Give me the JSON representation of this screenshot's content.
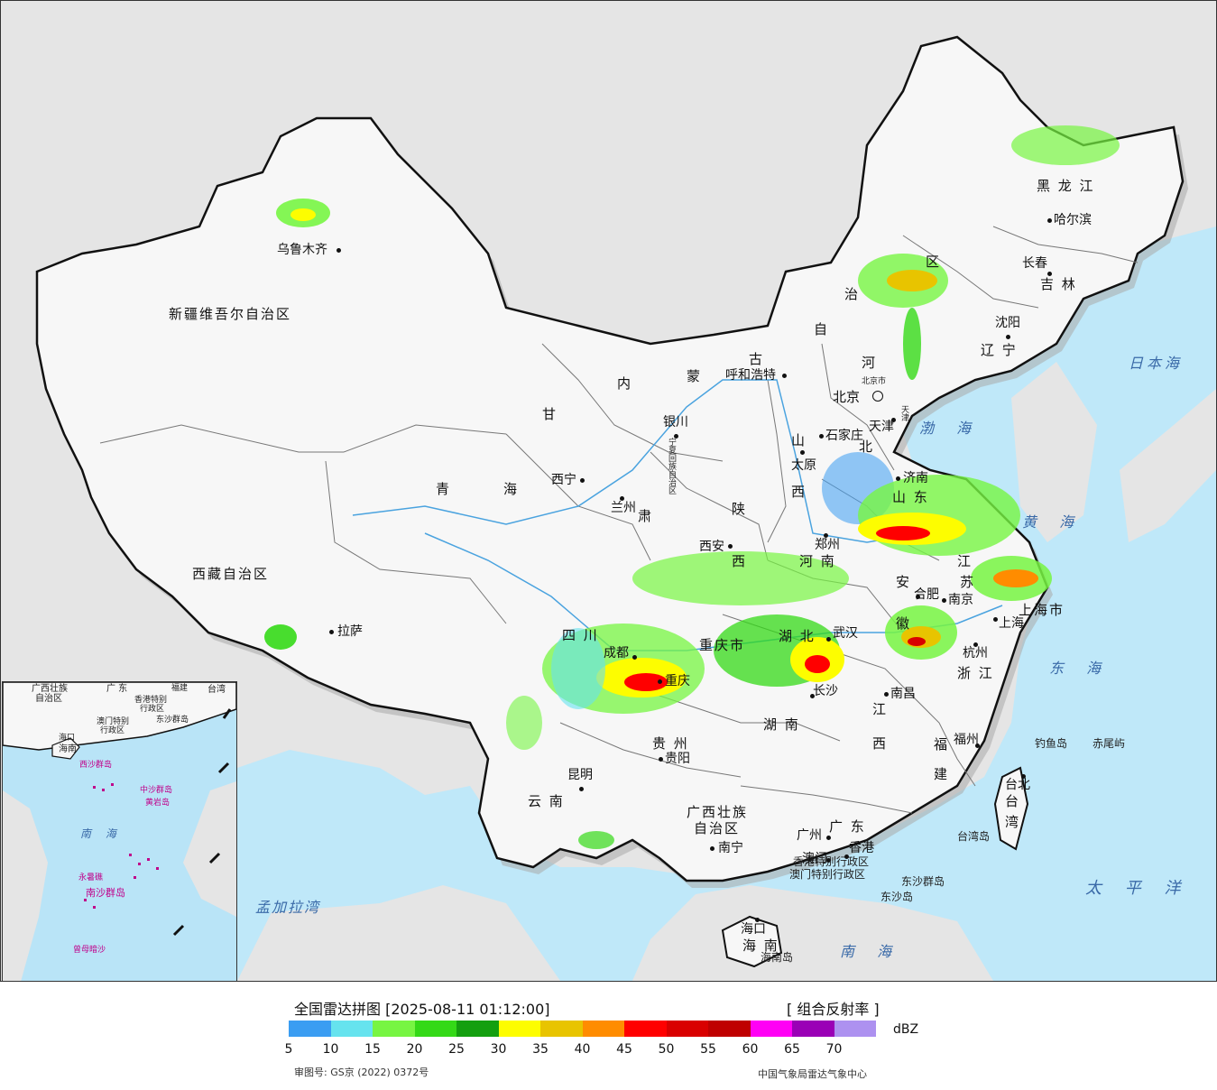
{
  "legend": {
    "title": "全国雷达拼图 [2025-08-11 01:12:00]",
    "product": "[ 组合反射率 ]",
    "unit": "dBZ",
    "ticks": [
      "5",
      "10",
      "15",
      "20",
      "25",
      "30",
      "35",
      "40",
      "45",
      "50",
      "55",
      "60",
      "65",
      "70"
    ],
    "colors": [
      "#3a9df2",
      "#66e3ee",
      "#77f542",
      "#34d917",
      "#149f0f",
      "#fdfd00",
      "#e8c400",
      "#ff8c00",
      "#ff0000",
      "#d90000",
      "#bf0000",
      "#ff00f5",
      "#9a00b6",
      "#ad91f0"
    ],
    "approval": "审图号: GS京 (2022) 0372号",
    "source": "中国气象局雷达气象中心"
  },
  "provinces": {
    "xinjiang": "新疆维吾尔自治区",
    "xizang": "西藏自治区",
    "qinghai_1": "青",
    "qinghai_2": "海",
    "gansu": "甘",
    "gansu_2": "肃",
    "neimenggu_1": "内",
    "neimenggu_2": "蒙",
    "neimenggu_3": "古",
    "neimenggu_4": "自",
    "neimenggu_5": "治",
    "neimenggu_6": "区",
    "heilongjiang": "黑 龙 江",
    "jilin": "吉 林",
    "liaoning": "辽 宁",
    "hebei_1": "河",
    "hebei_2": "北",
    "shanxi_1": "山",
    "shanxi_2": "西",
    "shaanxi_1": "陕",
    "shaanxi_2": "西",
    "shandong": "山 东",
    "henan": "河 南",
    "jiangsu_1": "江",
    "jiangsu_2": "苏",
    "anhui_1": "安",
    "anhui_2": "徽",
    "shanghai": "上海市",
    "zhejiang": "浙 江",
    "hubei": "湖 北",
    "sichuan": "四 川",
    "chongqing": "重庆市",
    "guizhou": "贵 州",
    "hunan": "湖 南",
    "jiangxi_1": "江",
    "jiangxi_2": "西",
    "fujian_1": "福",
    "fujian_2": "建",
    "yunnan": "云 南",
    "guangxi_1": "广西壮族",
    "guangxi_2": "自治区",
    "guangdong": "广 东",
    "hainan": "海 南",
    "taiwan_1": "台",
    "taiwan_2": "湾",
    "ningxia": "宁夏回族自治区",
    "tianjin": "天津",
    "xianggang": "香港特别行政区",
    "aomen": "澳门特别行政区"
  },
  "cities": {
    "urumqi": "乌鲁木齐",
    "lhasa": "拉萨",
    "xining": "西宁",
    "lanzhou": "兰州",
    "yinchuan": "银川",
    "hohhot": "呼和浩特",
    "beijing": "北京",
    "beijing_small": "北京市",
    "tianjin": "天津",
    "shijiazhuang": "石家庄",
    "taiyuan": "太原",
    "jinan": "济南",
    "zhengzhou": "郑州",
    "xian": "西安",
    "hefei": "合肥",
    "nanjing": "南京",
    "shanghai": "上海",
    "hangzhou": "杭州",
    "wuhan": "武汉",
    "chengdu": "成都",
    "chongqing": "重庆",
    "guiyang": "贵阳",
    "changsha": "长沙",
    "nanchang": "南昌",
    "fuzhou": "福州",
    "taibei": "台北",
    "kunming": "昆明",
    "nanning": "南宁",
    "guangzhou": "广州",
    "xianggang": "香港",
    "aomen": "澳门",
    "haikou": "海口",
    "harbin": "哈尔滨",
    "changchun": "长春",
    "shenyang": "沈阳"
  },
  "islands": {
    "diaoyu": "钓鱼岛",
    "chiwei": "赤尾屿",
    "taiwan_dao": "台湾岛",
    "dongsha_qundao": "东沙群岛",
    "dongsha_dao": "东沙岛",
    "hainan_dao": "海南岛"
  },
  "seas": {
    "bohai": "渤 海",
    "huanghai": "黄 海",
    "donghai": "东 海",
    "nanhai": "南 海",
    "riben_hai": "日本海",
    "taipingyang": "太 平 洋",
    "mengjiala": "孟加拉湾"
  },
  "inset": {
    "guangxi": "广西壮族",
    "zizhiqu": "自治区",
    "guangdong": "广 东",
    "fujian": "福建",
    "taiwan": "台湾",
    "hongkong": "香港特别",
    "hongkong_2": "行政区",
    "macau": "澳门特别",
    "macau_2": "行政区",
    "dongsha": "东沙群岛",
    "haikou": "海口",
    "hainan": "海南",
    "xisha": "西沙群岛",
    "zhongsha": "中沙群岛",
    "huangyan": "黄岩岛",
    "nanhai": "南 海",
    "yongshu": "永暑礁",
    "nansha": "南沙群岛",
    "zengmu": "曾母暗沙"
  }
}
